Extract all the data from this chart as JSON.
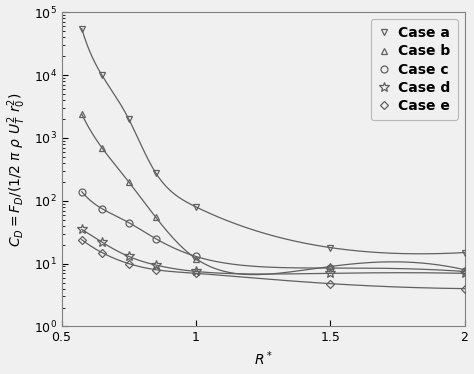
{
  "title": "",
  "xlabel": "R*",
  "ylabel": "$C_D = F_D/(1/2\\ \\pi\\ \\rho\\ U_T^2\\ r_0^2)$",
  "xlim": [
    0.5,
    2.0
  ],
  "ylim": [
    1.0,
    100000.0
  ],
  "cases": [
    {
      "label": "Case a",
      "marker": "v",
      "x": [
        0.575,
        0.65,
        0.75,
        0.85,
        1.0,
        1.5,
        2.0
      ],
      "y": [
        55000,
        10000,
        2000,
        280,
        80,
        18,
        15
      ]
    },
    {
      "label": "Case b",
      "marker": "^",
      "x": [
        0.575,
        0.65,
        0.75,
        0.85,
        1.0,
        1.5,
        2.0
      ],
      "y": [
        2400,
        700,
        200,
        55,
        12,
        9,
        8
      ]
    },
    {
      "label": "Case c",
      "marker": "o",
      "x": [
        0.575,
        0.65,
        0.75,
        0.85,
        1.0,
        1.5,
        2.0
      ],
      "y": [
        140,
        75,
        45,
        25,
        13,
        8.5,
        7.5
      ]
    },
    {
      "label": "Case d",
      "marker": "*",
      "x": [
        0.575,
        0.65,
        0.75,
        0.85,
        1.0,
        1.5,
        2.0
      ],
      "y": [
        35,
        22,
        13,
        9.5,
        7.5,
        7.0,
        7.0
      ]
    },
    {
      "label": "Case e",
      "marker": "D",
      "x": [
        0.575,
        0.65,
        0.75,
        0.85,
        1.0,
        1.5,
        2.0
      ],
      "y": [
        24,
        15,
        10,
        8.0,
        7.0,
        4.8,
        4.0
      ]
    }
  ],
  "line_color": "#606060",
  "marker_color": "#606060",
  "background_color": "#f0f0f0",
  "legend_loc": "upper right",
  "legend_fontsize": 10,
  "tick_fontsize": 9,
  "label_fontsize": 10
}
